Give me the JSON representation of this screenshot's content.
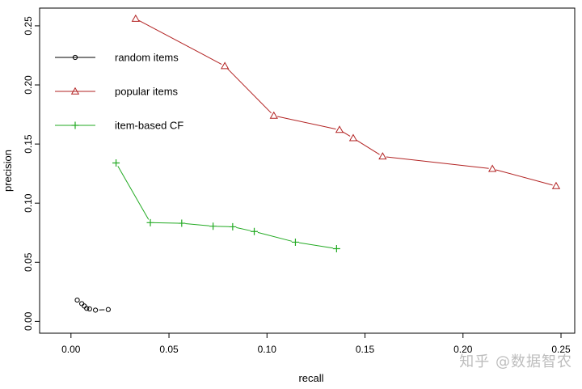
{
  "chart_data": {
    "type": "line",
    "title": "",
    "xlabel": "recall",
    "ylabel": "precision",
    "xlim": [
      -0.016,
      0.257
    ],
    "ylim": [
      -0.01,
      0.265
    ],
    "xticks": [
      0.0,
      0.05,
      0.1,
      0.15,
      0.2,
      0.25
    ],
    "xtick_labels": [
      "0.00",
      "0.05",
      "0.10",
      "0.15",
      "0.20",
      "0.25"
    ],
    "yticks": [
      0.0,
      0.05,
      0.1,
      0.15,
      0.2,
      0.25
    ],
    "ytick_labels": [
      "0.00",
      "0.05",
      "0.10",
      "0.15",
      "0.20",
      "0.25"
    ],
    "grid": false,
    "legend_position": "top-left",
    "series": [
      {
        "name": "random items",
        "marker": "circle",
        "color": "#000000",
        "x": [
          0.0032,
          0.0055,
          0.0068,
          0.008,
          0.0095,
          0.0125,
          0.019
        ],
        "y": [
          0.018,
          0.015,
          0.013,
          0.011,
          0.0105,
          0.0095,
          0.01
        ]
      },
      {
        "name": "popular items",
        "marker": "triangle",
        "color": "#b22222",
        "x": [
          0.033,
          0.0785,
          0.1035,
          0.137,
          0.144,
          0.159,
          0.215,
          0.2475
        ],
        "y": [
          0.256,
          0.216,
          0.174,
          0.162,
          0.155,
          0.1395,
          0.129,
          0.1145
        ]
      },
      {
        "name": "item-based CF",
        "marker": "plus",
        "color": "#22aa22",
        "x": [
          0.023,
          0.0405,
          0.0565,
          0.0725,
          0.0825,
          0.0935,
          0.1145,
          0.1355
        ],
        "y": [
          0.134,
          0.0835,
          0.083,
          0.0805,
          0.08,
          0.076,
          0.067,
          0.0615
        ]
      }
    ]
  },
  "watermark": "知乎 @数据智农"
}
